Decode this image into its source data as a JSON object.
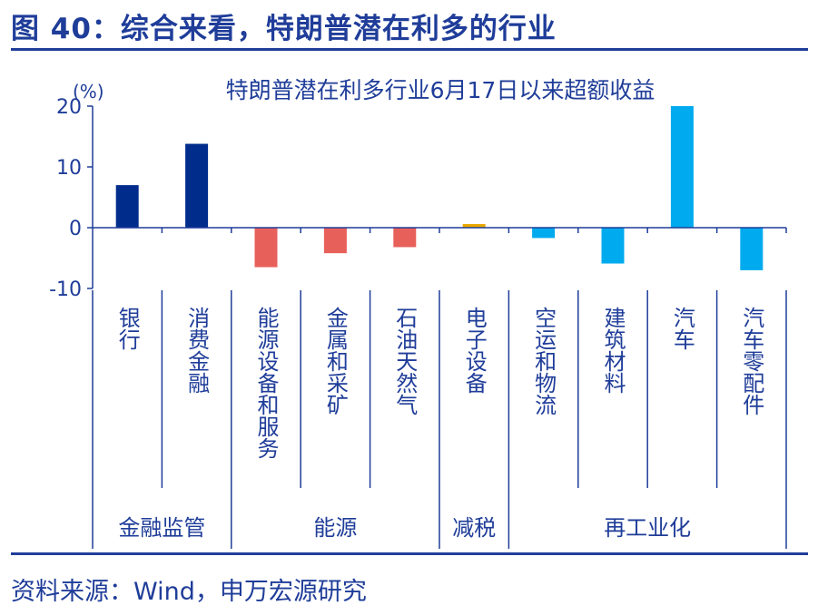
{
  "figure_title": "图 40：综合来看，特朗普潜在利多的行业",
  "source": "资料来源：Wind，申万宏源研究",
  "chart_data": {
    "type": "bar",
    "title": "特朗普潜在利多行业6月17日以来超额收益",
    "yunit": "(%)",
    "ylim": [
      -10,
      20
    ],
    "yticks": [
      20,
      10,
      0,
      -10
    ],
    "categories": [
      "银行",
      "消费金融",
      "能源设备和服务",
      "金属和采矿",
      "石油天然气",
      "电子设备",
      "空运和物流",
      "建筑材料",
      "汽车",
      "汽车零配件"
    ],
    "values": [
      7.0,
      13.8,
      -6.5,
      -4.2,
      -3.2,
      0.6,
      -1.7,
      -5.9,
      20.0,
      -7.0
    ],
    "colors": [
      "#002c8c",
      "#002c8c",
      "#e8605a",
      "#e8605a",
      "#e8605a",
      "#e8a800",
      "#00aaee",
      "#00aaee",
      "#00aaee",
      "#00aaee"
    ],
    "groups": [
      {
        "label": "金融监管",
        "count": 2
      },
      {
        "label": "能源",
        "count": 3
      },
      {
        "label": "减税",
        "count": 1
      },
      {
        "label": "再工业化",
        "count": 4
      }
    ],
    "axis_color": "#1f3d99",
    "grid": false
  }
}
